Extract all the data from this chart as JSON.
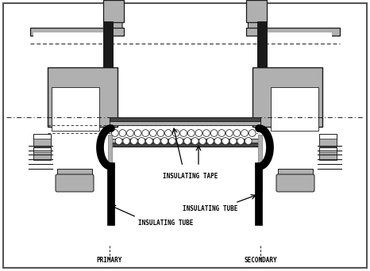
{
  "white": "#ffffff",
  "lc": "#1a1a1a",
  "lgray": "#b0b0b0",
  "mgray": "#888888",
  "dgray": "#444444",
  "black": "#000000",
  "primary_label": "PRIMARY",
  "secondary_label": "SECONDARY",
  "tape_label": "INSULATING TAPE",
  "tube_label": "INSULATING TUBE",
  "figsize": [
    4.66,
    3.42
  ],
  "dpi": 100
}
